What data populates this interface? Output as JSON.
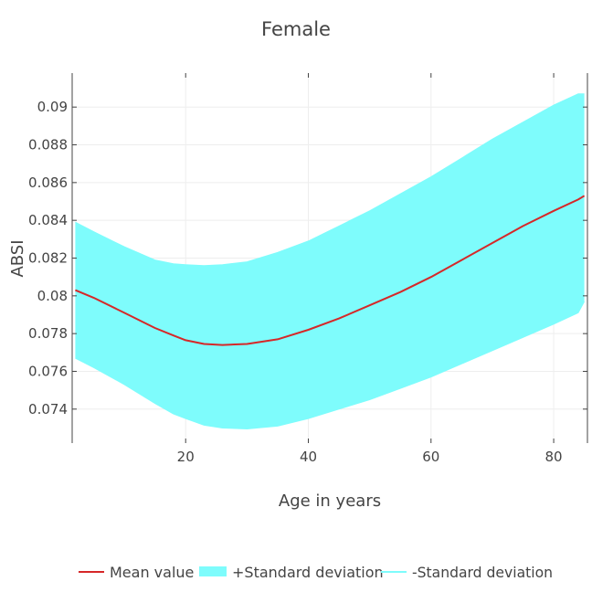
{
  "chart_data": {
    "type": "line",
    "title": "Female",
    "xlabel": "Age in years",
    "ylabel": "ABSI",
    "xlim": [
      1.5,
      85.5
    ],
    "ylim": [
      0.0722,
      0.0918
    ],
    "x_ticks": [
      20,
      40,
      60,
      80
    ],
    "y_ticks": [
      0.074,
      0.076,
      0.078,
      0.08,
      0.082,
      0.084,
      0.086,
      0.088,
      0.09
    ],
    "y_tick_labels": [
      "0.074",
      "0.076",
      "0.078",
      "0.08",
      "0.082",
      "0.084",
      "0.086",
      "0.088",
      "0.09"
    ],
    "grid": true,
    "legend_position": "bottom",
    "x": [
      2,
      5,
      10,
      15,
      18,
      20,
      23,
      26,
      30,
      35,
      40,
      45,
      50,
      55,
      60,
      65,
      70,
      75,
      80,
      84,
      85
    ],
    "series": [
      {
        "name": "Mean value",
        "color": "#d62728",
        "kind": "line",
        "values": [
          0.0803,
          0.0799,
          0.0791,
          0.0783,
          0.0779,
          0.07765,
          0.07745,
          0.0774,
          0.07745,
          0.0777,
          0.0782,
          0.0788,
          0.0795,
          0.0802,
          0.081,
          0.0819,
          0.0828,
          0.0837,
          0.0845,
          0.0851,
          0.0853
        ]
      },
      {
        "name": "+Standard deviation",
        "color": "#7efcfc",
        "kind": "band_upper",
        "values": [
          0.0839,
          0.0834,
          0.0826,
          0.0819,
          0.0817,
          0.08165,
          0.0816,
          0.08165,
          0.0818,
          0.0823,
          0.0829,
          0.0837,
          0.0845,
          0.0854,
          0.0863,
          0.0873,
          0.0883,
          0.0892,
          0.0901,
          0.0907,
          0.0907
        ]
      },
      {
        "name": "-Standard deviation",
        "color": "#7efcfc",
        "kind": "band_lower",
        "values": [
          0.0767,
          0.0762,
          0.0753,
          0.0743,
          0.07375,
          0.0735,
          0.07315,
          0.073,
          0.07295,
          0.0731,
          0.0735,
          0.074,
          0.0745,
          0.0751,
          0.0757,
          0.0764,
          0.0771,
          0.0778,
          0.0785,
          0.0791,
          0.0797
        ]
      }
    ]
  }
}
